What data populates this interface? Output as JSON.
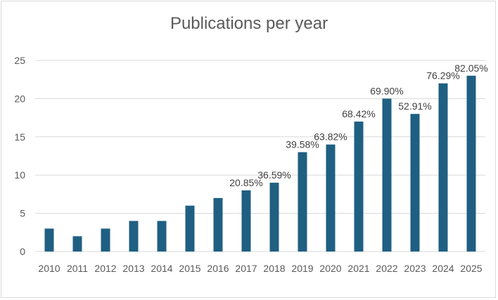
{
  "chart_data": {
    "type": "bar",
    "title": "Publications per year",
    "xlabel": "",
    "ylabel": "",
    "ylim": [
      0,
      25
    ],
    "yticks": [
      "0",
      "5",
      "10",
      "15",
      "20",
      "25"
    ],
    "grid": true,
    "legend": "none",
    "bar_color": "#1f5f82",
    "categories": [
      "2010",
      "2011",
      "2012",
      "2013",
      "2014",
      "2015",
      "2016",
      "2017",
      "2018",
      "2019",
      "2020",
      "2021",
      "2022",
      "2023",
      "2024",
      "2025"
    ],
    "values": [
      3,
      2,
      3,
      4,
      4,
      6,
      7,
      8,
      9,
      13,
      14,
      17,
      20,
      18,
      22,
      23
    ],
    "data_labels": [
      "",
      "",
      "",
      "",
      "",
      "",
      "",
      "20.85%",
      "36.59%",
      "39.58%",
      "63.82%",
      "68.42%",
      "69.90%",
      "52.91%",
      "76.29%",
      "82.05%"
    ]
  }
}
